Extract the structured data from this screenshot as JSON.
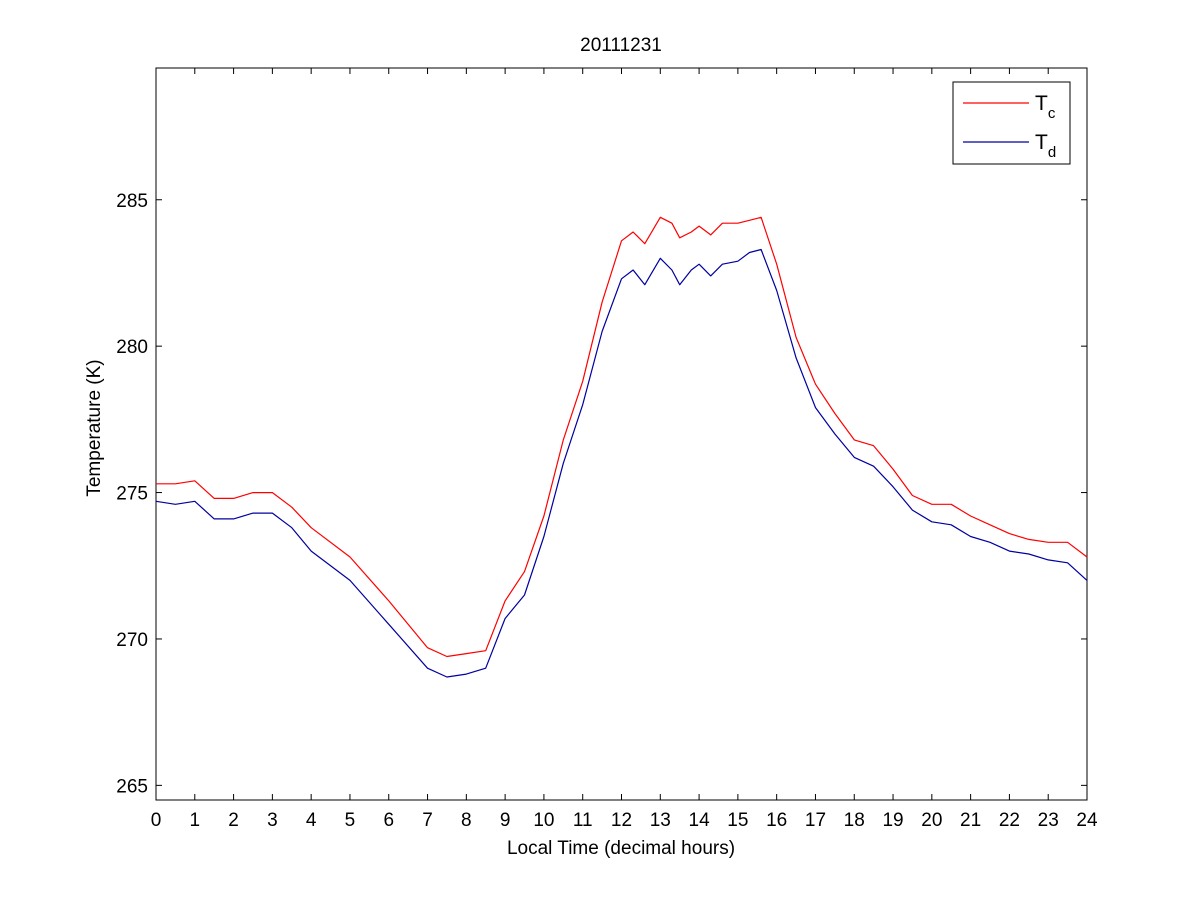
{
  "chart_data": {
    "type": "line",
    "title": "20111231",
    "xlabel": "Local Time (decimal hours)",
    "ylabel": "Temperature (K)",
    "xlim": [
      0,
      24
    ],
    "ylim": [
      264.5,
      289.5
    ],
    "xticks": [
      0,
      1,
      2,
      3,
      4,
      5,
      6,
      7,
      8,
      9,
      10,
      11,
      12,
      13,
      14,
      15,
      16,
      17,
      18,
      19,
      20,
      21,
      22,
      23,
      24
    ],
    "yticks": [
      265,
      270,
      275,
      280,
      285
    ],
    "xtick_labels": [
      "0",
      "1",
      "2",
      "3",
      "4",
      "5",
      "6",
      "7",
      "8",
      "9",
      "10",
      "11",
      "12",
      "13",
      "14",
      "15",
      "16",
      "17",
      "18",
      "19",
      "20",
      "21",
      "22",
      "23",
      "24"
    ],
    "ytick_labels": [
      "265",
      "270",
      "275",
      "280",
      "285"
    ],
    "grid": false,
    "legend_position": "top-right",
    "series": [
      {
        "name": "T_c",
        "label_main": "T",
        "label_sub": "c",
        "color": "#ff0000",
        "points": [
          [
            0,
            275.3
          ],
          [
            0.5,
            275.3
          ],
          [
            1,
            275.4
          ],
          [
            1.5,
            274.8
          ],
          [
            2,
            274.8
          ],
          [
            2.5,
            275.0
          ],
          [
            3,
            275.0
          ],
          [
            3.5,
            274.5
          ],
          [
            4,
            273.8
          ],
          [
            5,
            272.8
          ],
          [
            6,
            271.3
          ],
          [
            7,
            269.7
          ],
          [
            7.5,
            269.4
          ],
          [
            8,
            269.5
          ],
          [
            8.5,
            269.6
          ],
          [
            9,
            271.3
          ],
          [
            9.5,
            272.3
          ],
          [
            10,
            274.2
          ],
          [
            10.5,
            276.8
          ],
          [
            11,
            278.8
          ],
          [
            11.5,
            281.5
          ],
          [
            12,
            283.6
          ],
          [
            12.3,
            283.9
          ],
          [
            12.6,
            283.5
          ],
          [
            13,
            284.4
          ],
          [
            13.3,
            284.2
          ],
          [
            13.5,
            283.7
          ],
          [
            13.8,
            283.9
          ],
          [
            14,
            284.1
          ],
          [
            14.3,
            283.8
          ],
          [
            14.6,
            284.2
          ],
          [
            15,
            284.2
          ],
          [
            15.3,
            284.3
          ],
          [
            15.6,
            284.4
          ],
          [
            16,
            282.8
          ],
          [
            16.5,
            280.3
          ],
          [
            17,
            278.7
          ],
          [
            17.5,
            277.7
          ],
          [
            18,
            276.8
          ],
          [
            18.5,
            276.6
          ],
          [
            19,
            275.8
          ],
          [
            19.5,
            274.9
          ],
          [
            20,
            274.6
          ],
          [
            20.5,
            274.6
          ],
          [
            21,
            274.2
          ],
          [
            21.5,
            273.9
          ],
          [
            22,
            273.6
          ],
          [
            22.5,
            273.4
          ],
          [
            23,
            273.3
          ],
          [
            23.5,
            273.3
          ],
          [
            24,
            272.8
          ]
        ]
      },
      {
        "name": "T_d",
        "label_main": "T",
        "label_sub": "d",
        "color": "#0000a0",
        "points": [
          [
            0,
            274.7
          ],
          [
            0.5,
            274.6
          ],
          [
            1,
            274.7
          ],
          [
            1.5,
            274.1
          ],
          [
            2,
            274.1
          ],
          [
            2.5,
            274.3
          ],
          [
            3,
            274.3
          ],
          [
            3.5,
            273.8
          ],
          [
            4,
            273.0
          ],
          [
            5,
            272.0
          ],
          [
            6,
            270.5
          ],
          [
            7,
            269.0
          ],
          [
            7.5,
            268.7
          ],
          [
            8,
            268.8
          ],
          [
            8.5,
            269.0
          ],
          [
            9,
            270.7
          ],
          [
            9.5,
            271.5
          ],
          [
            10,
            273.5
          ],
          [
            10.5,
            276.0
          ],
          [
            11,
            278.0
          ],
          [
            11.5,
            280.5
          ],
          [
            12,
            282.3
          ],
          [
            12.3,
            282.6
          ],
          [
            12.6,
            282.1
          ],
          [
            13,
            283.0
          ],
          [
            13.3,
            282.6
          ],
          [
            13.5,
            282.1
          ],
          [
            13.8,
            282.6
          ],
          [
            14,
            282.8
          ],
          [
            14.3,
            282.4
          ],
          [
            14.6,
            282.8
          ],
          [
            15,
            282.9
          ],
          [
            15.3,
            283.2
          ],
          [
            15.6,
            283.3
          ],
          [
            16,
            281.9
          ],
          [
            16.5,
            279.6
          ],
          [
            17,
            277.9
          ],
          [
            17.5,
            277.0
          ],
          [
            18,
            276.2
          ],
          [
            18.5,
            275.9
          ],
          [
            19,
            275.2
          ],
          [
            19.5,
            274.4
          ],
          [
            20,
            274.0
          ],
          [
            20.5,
            273.9
          ],
          [
            21,
            273.5
          ],
          [
            21.5,
            273.3
          ],
          [
            22,
            273.0
          ],
          [
            22.5,
            272.9
          ],
          [
            23,
            272.7
          ],
          [
            23.5,
            272.6
          ],
          [
            24,
            272.0
          ]
        ]
      }
    ]
  }
}
